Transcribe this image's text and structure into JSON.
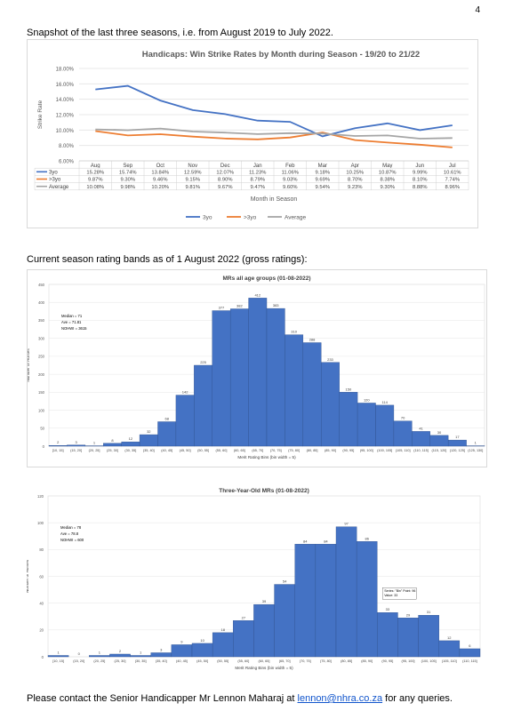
{
  "page_number": "4",
  "intro": "Snapshot of the last three seasons, i.e. from August 2019 to July 2022.",
  "section2_title": "Current season rating bands as of 1 August 2022 (gross ratings):",
  "footer": {
    "prefix": "Please contact the Senior Handicapper Mr Lennon Maharaj at ",
    "email": "lennon@nhra.co.za",
    "suffix": " for any queries."
  },
  "colors": {
    "blue": "#4472c4",
    "orange": "#ed7d31",
    "grey": "#a5a5a5",
    "title_grey": "#595959"
  },
  "chart_data": [
    {
      "type": "line",
      "title": "Handicaps: Win Strike Rates by Month during Season - 19/20 to 21/22",
      "xlabel": "Month in Season",
      "ylabel": "Strike Rate",
      "ylim": [
        6,
        18
      ],
      "yticks": [
        "6.00%",
        "8.00%",
        "10.00%",
        "12.00%",
        "14.00%",
        "16.00%",
        "18.00%"
      ],
      "categories": [
        "Aug",
        "Sep",
        "Oct",
        "Nov",
        "Dec",
        "Jan",
        "Feb",
        "Mar",
        "Apr",
        "May",
        "Jun",
        "Jul"
      ],
      "series": [
        {
          "name": "3yo",
          "color": "#4472c4",
          "values": [
            15.28,
            15.74,
            13.84,
            12.59,
            12.07,
            11.23,
            11.06,
            9.18,
            10.25,
            10.87,
            9.99,
            10.61
          ],
          "labels": [
            "15.28%",
            "15.74%",
            "13.84%",
            "12.59%",
            "12.07%",
            "11.23%",
            "11.06%",
            "9.18%",
            "10.25%",
            "10.87%",
            "9.99%",
            "10.61%"
          ]
        },
        {
          "name": ">3yo",
          "color": "#ed7d31",
          "values": [
            9.87,
            9.3,
            9.46,
            9.15,
            8.9,
            8.79,
            9.03,
            9.69,
            8.7,
            8.38,
            8.1,
            7.74
          ],
          "labels": [
            "9.87%",
            "9.30%",
            "9.46%",
            "9.15%",
            "8.90%",
            "8.79%",
            "9.03%",
            "9.69%",
            "8.70%",
            "8.38%",
            "8.10%",
            "7.74%"
          ]
        },
        {
          "name": "Average",
          "color": "#a5a5a5",
          "values": [
            10.08,
            9.98,
            10.2,
            9.81,
            9.67,
            9.47,
            9.6,
            9.54,
            9.23,
            9.3,
            8.88,
            8.96
          ],
          "labels": [
            "10.08%",
            "9.98%",
            "10.20%",
            "9.81%",
            "9.67%",
            "9.47%",
            "9.60%",
            "9.54%",
            "9.23%",
            "9.30%",
            "8.88%",
            "8.96%"
          ]
        }
      ],
      "legend": "bottom"
    },
    {
      "type": "bar",
      "title": "MRs all age groups (01-08-2022)",
      "xlabel": "Merit Rating Bins (bin width = 5)",
      "ylabel": "Number of Horses",
      "ylim": [
        0,
        450
      ],
      "yticks": [
        "0",
        "50",
        "100",
        "150",
        "200",
        "250",
        "300",
        "350",
        "400",
        "450"
      ],
      "annotation": [
        "Median = 71",
        "Ave = 71.81",
        "NOHWI = 3615"
      ],
      "categories": [
        "[10, 15]",
        "(15, 20]",
        "(20, 25]",
        "(25, 30]",
        "(30, 35]",
        "(35, 40]",
        "(40, 45]",
        "(45, 50]",
        "(50, 55]",
        "(55, 60]",
        "(60, 65]",
        "(65, 70]",
        "(70, 75]",
        "(75, 80]",
        "(80, 85]",
        "(85, 90]",
        "(90, 95]",
        "(95, 100]",
        "(100, 105]",
        "(105, 110]",
        "(110, 115]",
        "(115, 120]",
        "(120, 125]",
        "(125, 130]"
      ],
      "values": [
        2,
        3,
        1,
        8,
        12,
        32,
        68,
        142,
        225,
        377,
        382,
        412,
        383,
        310,
        288,
        233,
        150,
        120,
        114,
        70,
        41,
        30,
        17,
        1
      ]
    },
    {
      "type": "bar",
      "title": "Three-Year-Old MRs (01-08-2022)",
      "xlabel": "Merit Rating Bins (bin width = 5)",
      "ylabel": "Number of Horses",
      "ylim": [
        0,
        120
      ],
      "yticks": [
        "0",
        "20",
        "40",
        "60",
        "80",
        "100",
        "120"
      ],
      "annotation": [
        "Median = 78",
        "Ave = 78.8",
        "NOHWI = 600"
      ],
      "callout": [
        "Series: \"Bin\" Point: 96",
        "Value: 33"
      ],
      "categories": [
        "[10, 15]",
        "(15, 20]",
        "(20, 25]",
        "(25, 30]",
        "(30, 35]",
        "(35, 40]",
        "(40, 45]",
        "(45, 50]",
        "(50, 55]",
        "(55, 60]",
        "(60, 65]",
        "(65, 70]",
        "(70, 75]",
        "(75, 80]",
        "(80, 85]",
        "(85, 90]",
        "(90, 95]",
        "(95, 100]",
        "(100, 105]",
        "(105, 110]",
        "(110, 115]"
      ],
      "values": [
        1,
        0,
        1,
        2,
        1,
        3,
        9,
        10,
        18,
        27,
        39,
        54,
        84,
        84,
        97,
        86,
        33,
        29,
        31,
        12,
        6
      ]
    }
  ]
}
